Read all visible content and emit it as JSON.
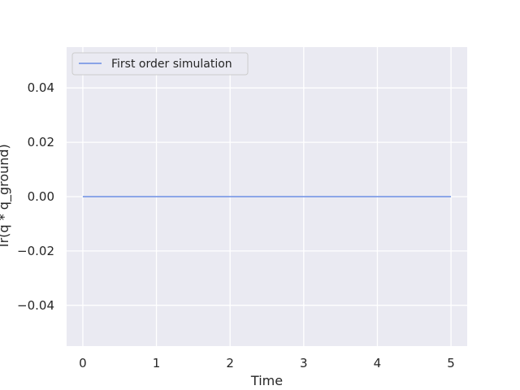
{
  "chart_data": {
    "type": "line",
    "xlabel": "Time",
    "ylabel": "Tr(q * q_ground)",
    "xlim": [
      -0.22,
      5.22
    ],
    "ylim": [
      -0.055,
      0.055
    ],
    "x_ticks": [
      0,
      1,
      2,
      3,
      4,
      5
    ],
    "x_tick_labels": [
      "0",
      "1",
      "2",
      "3",
      "4",
      "5"
    ],
    "y_ticks": [
      0.04,
      0.02,
      0.0,
      -0.02,
      -0.04
    ],
    "y_tick_labels": [
      "0.04",
      "0.02",
      "0.00",
      "−0.02",
      "−0.04"
    ],
    "grid": true,
    "legend_position": "top-left",
    "series": [
      {
        "name": "First order simulation",
        "color": "#6b8de3",
        "x": [
          0,
          5
        ],
        "y": [
          0.0,
          0.0
        ]
      }
    ]
  },
  "colors": {
    "plot_background": "#eaeaf2",
    "grid": "#ffffff",
    "text": "#262626"
  }
}
